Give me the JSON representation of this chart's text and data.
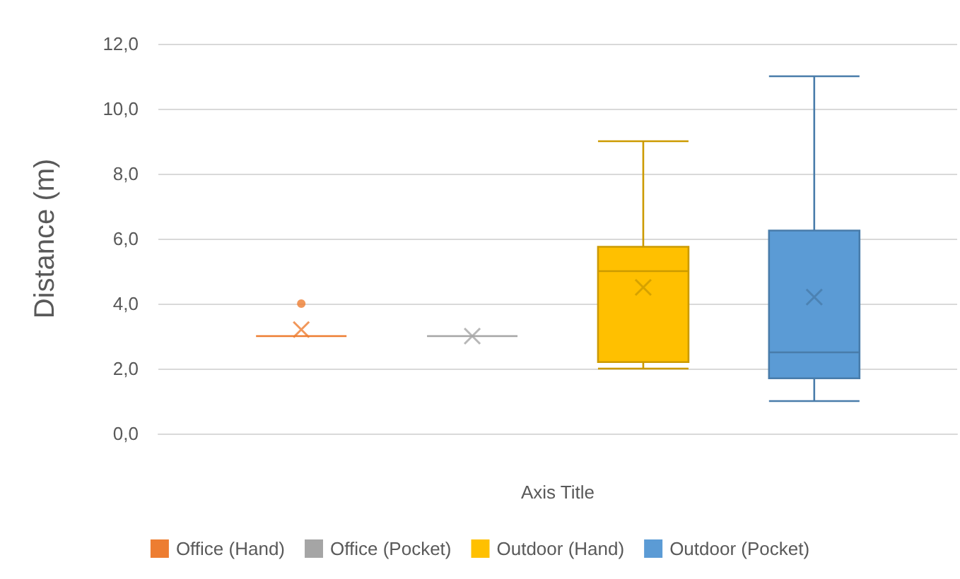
{
  "chart_data": {
    "type": "box",
    "xlabel": "Axis Title",
    "ylabel": "Distance (m)",
    "categories": [
      null
    ],
    "ylim": [
      0,
      12
    ],
    "yticks": [
      {
        "value": 0,
        "label": "0,0"
      },
      {
        "value": 2,
        "label": "2,0"
      },
      {
        "value": 4,
        "label": "4,0"
      },
      {
        "value": 6,
        "label": "6,0"
      },
      {
        "value": 8,
        "label": "8,0"
      },
      {
        "value": 10,
        "label": "10,0"
      },
      {
        "value": 12,
        "label": "12,0"
      }
    ],
    "grid": "y",
    "legend": "bottom",
    "series": [
      {
        "name": "Office (Hand)",
        "color": "#ed7d31",
        "boxes": [
          {
            "low": 3,
            "q1": 3,
            "median": 3,
            "q3": 3,
            "high": 3,
            "mean": 3.2,
            "outliers": [
              4
            ]
          }
        ]
      },
      {
        "name": "Office (Pocket)",
        "color": "#a5a5a5",
        "boxes": [
          {
            "low": 3,
            "q1": 3,
            "median": 3,
            "q3": 3,
            "high": 3,
            "mean": 3
          }
        ]
      },
      {
        "name": "Outdoor (Hand)",
        "color": "#ffc000",
        "boxes": [
          {
            "low": 2,
            "q1": 2.2,
            "median": 5,
            "q3": 5.75,
            "high": 9,
            "mean": 4.5
          }
        ]
      },
      {
        "name": "Outdoor (Pocket)",
        "color": "#5b9bd5",
        "boxes": [
          {
            "low": 1,
            "q1": 1.7,
            "median": 2.5,
            "q3": 6.25,
            "high": 11,
            "mean": 4.2
          }
        ]
      }
    ]
  }
}
